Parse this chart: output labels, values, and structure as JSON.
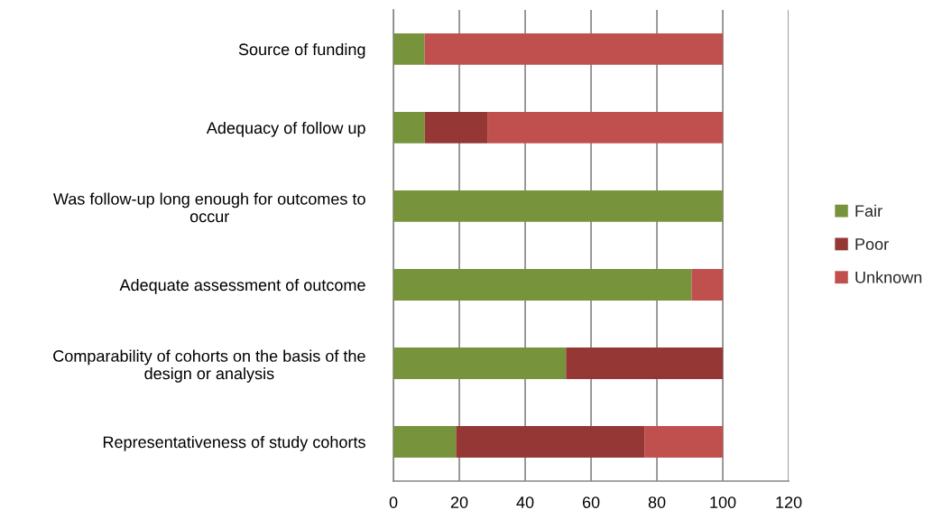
{
  "chart_data": {
    "type": "bar",
    "orientation": "horizontal",
    "stacked": true,
    "categories": [
      "Source of funding",
      "Adequacy of follow up",
      "Was follow-up long enough for outcomes to\noccur",
      "Adequate assessment of outcome",
      "Comparability of cohorts on the basis of the\ndesign or analysis",
      "Representativeness of study cohorts"
    ],
    "series": [
      {
        "name": "Fair",
        "color": "#77933c",
        "values": [
          9.5,
          9.5,
          100,
          90.5,
          52.4,
          19
        ]
      },
      {
        "name": "Poor",
        "color": "#953735",
        "values": [
          null,
          19,
          null,
          null,
          47.6,
          57.2
        ]
      },
      {
        "name": "Unknown",
        "color": "#c0504d",
        "values": [
          90.5,
          71.5,
          null,
          9.5,
          null,
          23.8
        ]
      }
    ],
    "xlim": [
      0,
      120
    ],
    "xticks": [
      0,
      20,
      40,
      60,
      80,
      100,
      120
    ],
    "grid": "x",
    "legend": "right"
  }
}
